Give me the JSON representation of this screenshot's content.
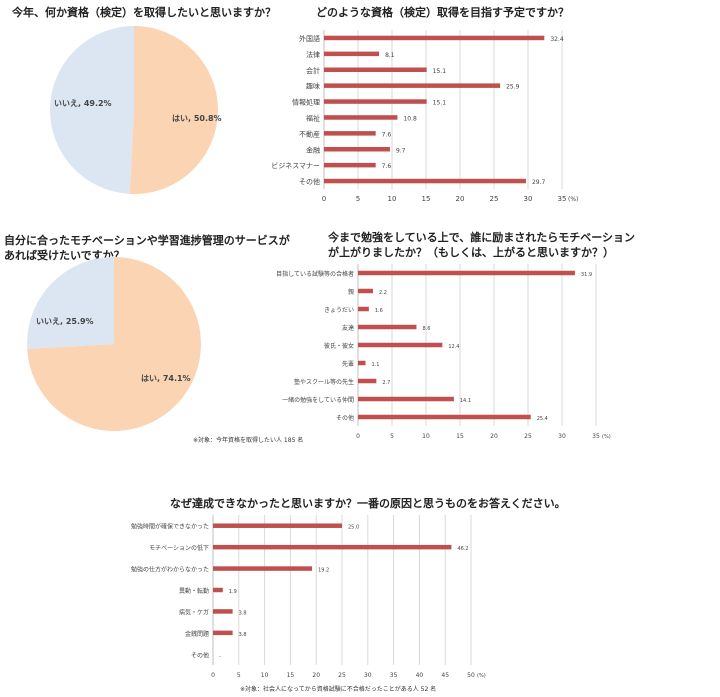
{
  "chart_data": [
    {
      "type": "pie",
      "title": "今年、何か資格（検定）を取得したいと思いますか？",
      "slices": [
        {
          "label": "はい",
          "value": 50.8,
          "display": "はい, 50.8%",
          "color": "#fbd4b4"
        },
        {
          "label": "いいえ",
          "value": 49.2,
          "display": "いいえ, 49.2%",
          "color": "#dce6f2"
        }
      ]
    },
    {
      "type": "bar",
      "orientation": "horizontal",
      "title": "どのような資格（検定）取得を目指す予定ですか？",
      "categories": [
        "外国語",
        "法律",
        "会計",
        "趣味",
        "情報処理",
        "福祉",
        "不動産",
        "金融",
        "ビジネスマナー",
        "その他"
      ],
      "values": [
        32.4,
        8.1,
        15.1,
        25.9,
        15.1,
        10.8,
        7.6,
        9.7,
        7.6,
        29.7
      ],
      "value_labels": [
        "32.4",
        "8.1",
        "15.1",
        "25.9",
        "15.1",
        "10.8",
        "7.6",
        "9.7",
        "7.6",
        "29.7"
      ],
      "xlim": [
        0,
        35
      ],
      "ticks": [
        "0",
        "5",
        "10",
        "15",
        "20",
        "25",
        "30",
        "35"
      ],
      "unit": "(%)",
      "grid": true,
      "color": "#c0504d"
    },
    {
      "type": "pie",
      "title": "自分に合ったモチベーションや学習進捗管理のサービスがあれば受けたいですか？",
      "slices": [
        {
          "label": "はい",
          "value": 74.1,
          "display": "はい, 74.1%",
          "color": "#fbd4b4"
        },
        {
          "label": "いいえ",
          "value": 25.9,
          "display": "いいえ, 25.9%",
          "color": "#dce6f2"
        }
      ]
    },
    {
      "type": "bar",
      "orientation": "horizontal",
      "title": "今まで勉強をしている上で、誰に励まされたらモチベーションが上がりましたか？（もしくは、上がると思いますか？）",
      "categories": [
        "目指している試験等の合格者",
        "親",
        "きょうだい",
        "友達",
        "彼氏・彼女",
        "先輩",
        "塾やスクール等の先生",
        "一緒の勉強をしている仲間",
        "その他"
      ],
      "values": [
        31.9,
        2.2,
        1.6,
        8.6,
        12.4,
        1.1,
        2.7,
        14.1,
        25.4
      ],
      "value_labels": [
        "31.9",
        "2.2",
        "1.6",
        "8.6",
        "12.4",
        "1.1",
        "2.7",
        "14.1",
        "25.4"
      ],
      "xlim": [
        0,
        35
      ],
      "ticks": [
        "0",
        "5",
        "10",
        "15",
        "20",
        "25",
        "30",
        "35"
      ],
      "unit": "(%)",
      "grid": true,
      "color": "#c0504d",
      "note": "※対象：今年資格を取得したい人 185 名"
    },
    {
      "type": "bar",
      "orientation": "horizontal",
      "title": "なぜ達成できなかったと思いますか？一番の原因と思うものをお答えください。",
      "categories": [
        "勉強時間が確保できなかった",
        "モチベーションの低下",
        "勉強の仕方がわからなかった",
        "異動・転勤",
        "病気・ケガ",
        "金銭問題",
        "その他"
      ],
      "values": [
        25.0,
        46.2,
        19.2,
        1.9,
        3.8,
        3.8,
        0
      ],
      "value_labels": [
        "25.0",
        "46.2",
        "19.2",
        "1.9",
        "3.8",
        "3.8",
        "-"
      ],
      "xlim": [
        0,
        50
      ],
      "ticks": [
        "0",
        "5",
        "10",
        "15",
        "20",
        "25",
        "30",
        "35",
        "40",
        "45",
        "50"
      ],
      "unit": "(%)",
      "grid": true,
      "color": "#c0504d",
      "note": "※対象：社会人になってから資格試験に不合格だったことがある人 52 名"
    }
  ]
}
